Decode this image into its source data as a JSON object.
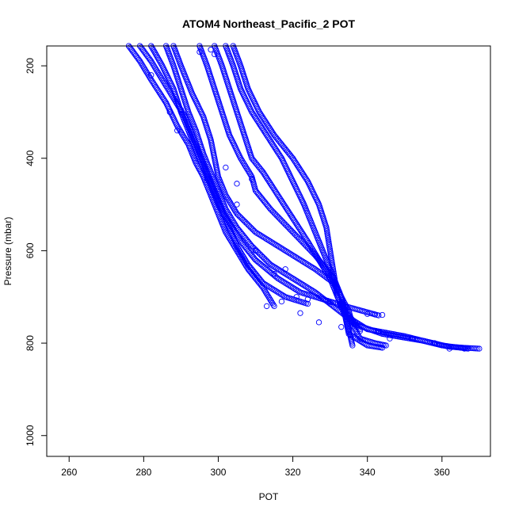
{
  "chart_data": {
    "type": "scatter",
    "title": "ATOM4 Northeast_Pacific_2 POT",
    "xlabel": "POT",
    "ylabel": "Pressure (mbar)",
    "xlim": [
      254,
      373
    ],
    "ylim": [
      1045,
      157
    ],
    "y_axis_reversed": true,
    "x_ticks": [
      260,
      280,
      300,
      320,
      340,
      360
    ],
    "y_ticks": [
      200,
      400,
      600,
      800,
      1000
    ],
    "grid": false,
    "legend": "none",
    "marker": "open-circle",
    "color": "#0000ff",
    "profiles": [
      {
        "pts": [
          [
            276,
            157
          ],
          [
            279,
            190
          ],
          [
            282,
            230
          ],
          [
            286,
            280
          ],
          [
            289,
            330
          ],
          [
            292,
            370
          ],
          [
            294,
            410
          ],
          [
            296,
            440
          ],
          [
            298,
            480
          ],
          [
            300,
            520
          ],
          [
            302,
            560
          ],
          [
            305,
            600
          ],
          [
            308,
            640
          ],
          [
            312,
            680
          ],
          [
            315,
            720
          ]
        ]
      },
      {
        "pts": [
          [
            279,
            157
          ],
          [
            282,
            190
          ],
          [
            285,
            230
          ],
          [
            288,
            270
          ],
          [
            291,
            310
          ],
          [
            293,
            350
          ],
          [
            295,
            390
          ],
          [
            297,
            430
          ],
          [
            299,
            470
          ],
          [
            301,
            510
          ],
          [
            303,
            550
          ],
          [
            305,
            590
          ],
          [
            308,
            630
          ],
          [
            312,
            670
          ],
          [
            318,
            700
          ],
          [
            324,
            715
          ]
        ]
      },
      {
        "pts": [
          [
            282,
            157
          ],
          [
            285,
            200
          ],
          [
            288,
            250
          ],
          [
            290,
            300
          ],
          [
            292,
            340
          ],
          [
            294,
            380
          ],
          [
            296,
            420
          ],
          [
            298,
            460
          ],
          [
            300,
            500
          ],
          [
            303,
            540
          ],
          [
            306,
            580
          ],
          [
            310,
            620
          ],
          [
            316,
            660
          ],
          [
            322,
            690
          ],
          [
            328,
            705
          ],
          [
            334,
            720
          ],
          [
            343,
            740
          ]
        ]
      },
      {
        "pts": [
          [
            286,
            157
          ],
          [
            288,
            200
          ],
          [
            290,
            250
          ],
          [
            292,
            300
          ],
          [
            294,
            340
          ],
          [
            296,
            390
          ],
          [
            298,
            430
          ],
          [
            300,
            470
          ],
          [
            302,
            510
          ],
          [
            305,
            550
          ],
          [
            309,
            590
          ],
          [
            314,
            630
          ],
          [
            320,
            660
          ],
          [
            326,
            690
          ],
          [
            330,
            715
          ],
          [
            334,
            740
          ],
          [
            338,
            770
          ]
        ]
      },
      {
        "pts": [
          [
            288,
            157
          ],
          [
            290,
            200
          ],
          [
            293,
            260
          ],
          [
            296,
            310
          ],
          [
            298,
            360
          ],
          [
            299,
            400
          ],
          [
            300,
            440
          ],
          [
            302,
            480
          ],
          [
            305,
            520
          ],
          [
            310,
            560
          ],
          [
            318,
            600
          ],
          [
            326,
            640
          ],
          [
            331,
            670
          ],
          [
            333,
            700
          ],
          [
            334,
            730
          ],
          [
            335,
            770
          ],
          [
            336,
            805
          ]
        ]
      },
      {
        "pts": [
          [
            295,
            157
          ],
          [
            297,
            200
          ],
          [
            299,
            250
          ],
          [
            301,
            300
          ],
          [
            303,
            350
          ],
          [
            306,
            400
          ],
          [
            309,
            440
          ],
          [
            310,
            470
          ],
          [
            314,
            510
          ],
          [
            320,
            560
          ],
          [
            326,
            610
          ],
          [
            331,
            660
          ],
          [
            333,
            700
          ],
          [
            334,
            740
          ],
          [
            335,
            780
          ],
          [
            340,
            805
          ],
          [
            344,
            810
          ]
        ]
      },
      {
        "pts": [
          [
            299,
            157
          ],
          [
            301,
            200
          ],
          [
            303,
            250
          ],
          [
            305,
            300
          ],
          [
            307,
            350
          ],
          [
            309,
            400
          ],
          [
            312,
            430
          ],
          [
            316,
            480
          ],
          [
            320,
            530
          ],
          [
            324,
            580
          ],
          [
            327,
            620
          ],
          [
            330,
            660
          ],
          [
            332,
            700
          ],
          [
            334,
            730
          ],
          [
            337,
            760
          ],
          [
            344,
            780
          ],
          [
            355,
            795
          ],
          [
            362,
            808
          ],
          [
            370,
            812
          ]
        ]
      },
      {
        "pts": [
          [
            302,
            157
          ],
          [
            304,
            200
          ],
          [
            306,
            250
          ],
          [
            309,
            300
          ],
          [
            313,
            350
          ],
          [
            317,
            400
          ],
          [
            320,
            450
          ],
          [
            323,
            500
          ],
          [
            325,
            540
          ],
          [
            327,
            580
          ],
          [
            329,
            620
          ],
          [
            331,
            660
          ],
          [
            333,
            700
          ],
          [
            335,
            730
          ],
          [
            336,
            760
          ],
          [
            338,
            790
          ],
          [
            342,
            800
          ],
          [
            345,
            805
          ]
        ]
      },
      {
        "pts": [
          [
            304,
            157
          ],
          [
            306,
            200
          ],
          [
            308,
            250
          ],
          [
            311,
            300
          ],
          [
            315,
            350
          ],
          [
            320,
            400
          ],
          [
            324,
            450
          ],
          [
            327,
            500
          ],
          [
            329,
            550
          ],
          [
            330,
            600
          ],
          [
            331,
            650
          ],
          [
            332,
            700
          ],
          [
            334,
            740
          ],
          [
            340,
            770
          ],
          [
            350,
            785
          ],
          [
            360,
            805
          ],
          [
            367,
            812
          ]
        ]
      }
    ],
    "extra_points": [
      [
        287,
        300
      ],
      [
        289,
        340
      ],
      [
        302,
        420
      ],
      [
        305,
        455
      ],
      [
        309,
        445
      ],
      [
        318,
        640
      ],
      [
        321,
        700
      ],
      [
        324,
        705
      ],
      [
        330,
        712
      ],
      [
        333,
        712
      ],
      [
        340,
        737
      ],
      [
        342,
        738
      ],
      [
        344,
        739
      ],
      [
        338,
        774
      ],
      [
        343,
        775
      ],
      [
        305,
        500
      ],
      [
        301,
        520
      ],
      [
        313,
        720
      ],
      [
        317,
        710
      ],
      [
        322,
        735
      ],
      [
        327,
        755
      ],
      [
        333,
        765
      ],
      [
        346,
        790
      ],
      [
        352,
        790
      ],
      [
        358,
        800
      ],
      [
        362,
        812
      ],
      [
        366,
        812
      ],
      [
        300,
        490
      ],
      [
        297,
        445
      ],
      [
        310,
        600
      ],
      [
        315,
        650
      ],
      [
        290,
        295
      ],
      [
        282,
        220
      ],
      [
        295,
        170
      ],
      [
        298,
        165
      ],
      [
        299,
        175
      ]
    ]
  }
}
